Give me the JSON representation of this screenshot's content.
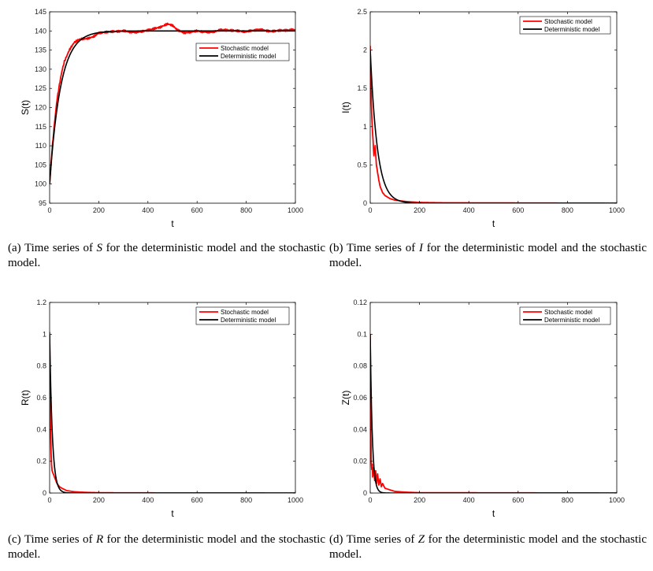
{
  "chart_data": [
    {
      "type": "line",
      "panel": "a",
      "xlabel": "t",
      "ylabel": "S(t)",
      "xlim": [
        0,
        1000
      ],
      "ylim": [
        95,
        145
      ],
      "xticks": [
        "0",
        "200",
        "400",
        "600",
        "800",
        "1000"
      ],
      "yticks": [
        "95",
        "100",
        "105",
        "110",
        "115",
        "120",
        "125",
        "130",
        "135",
        "140",
        "145"
      ],
      "legend_position": "top-right",
      "series": [
        {
          "name": "Stochastic model",
          "color": "#ff0000",
          "kind": "stochastic",
          "x": [
            0,
            10,
            20,
            30,
            40,
            50,
            60,
            80,
            100,
            120,
            150,
            180,
            200,
            250,
            300,
            350,
            400,
            450,
            480,
            500,
            520,
            550,
            600,
            650,
            700,
            750,
            800,
            850,
            900,
            950,
            1000
          ],
          "y": [
            100,
            109,
            116,
            122,
            126,
            129.5,
            132,
            135,
            137,
            137.8,
            138,
            138.5,
            139.5,
            139.8,
            140,
            139.6,
            140.2,
            141,
            141.8,
            141.5,
            140.2,
            139.5,
            140,
            139.6,
            140.3,
            140.1,
            139.8,
            140.4,
            139.9,
            140.2,
            140.3
          ]
        },
        {
          "name": "Deterministic model",
          "color": "#000000",
          "kind": "exp",
          "start": 100,
          "end": 140,
          "rate": 0.0225
        }
      ]
    },
    {
      "type": "line",
      "panel": "b",
      "xlabel": "t",
      "ylabel": "I(t)",
      "xlim": [
        0,
        1000
      ],
      "ylim": [
        0,
        2.5
      ],
      "xticks": [
        "0",
        "200",
        "400",
        "600",
        "800",
        "1000"
      ],
      "yticks": [
        "0",
        "0.5",
        "1",
        "1.5",
        "2",
        "2.5"
      ],
      "legend_position": "top-right",
      "series": [
        {
          "name": "Stochastic model",
          "color": "#ff0000",
          "kind": "stochastic",
          "x": [
            0,
            3,
            6,
            10,
            15,
            20,
            25,
            30,
            35,
            40,
            50,
            60,
            80,
            100,
            150,
            200,
            300,
            1000
          ],
          "y": [
            2.03,
            1.5,
            1.15,
            0.9,
            0.62,
            0.75,
            0.5,
            0.4,
            0.3,
            0.22,
            0.14,
            0.1,
            0.06,
            0.04,
            0.02,
            0.01,
            0.005,
            0
          ]
        },
        {
          "name": "Deterministic model",
          "color": "#000000",
          "kind": "exp",
          "start": 2.0,
          "end": 0,
          "rate": 0.035
        }
      ]
    },
    {
      "type": "line",
      "panel": "c",
      "xlabel": "t",
      "ylabel": "R(t)",
      "xlim": [
        0,
        1000
      ],
      "ylim": [
        0,
        1.2
      ],
      "xticks": [
        "0",
        "200",
        "400",
        "600",
        "800",
        "1000"
      ],
      "yticks": [
        "0",
        "0.2",
        "0.4",
        "0.6",
        "0.8",
        "1",
        "1.2"
      ],
      "legend_position": "top-right",
      "series": [
        {
          "name": "Stochastic model",
          "color": "#ff0000",
          "kind": "stochastic",
          "x": [
            0,
            2,
            4,
            6,
            8,
            10,
            15,
            20,
            25,
            30,
            40,
            50,
            70,
            100,
            150,
            200,
            300,
            1000
          ],
          "y": [
            1.0,
            0.6,
            0.38,
            0.25,
            0.18,
            0.14,
            0.12,
            0.1,
            0.08,
            0.06,
            0.04,
            0.03,
            0.015,
            0.008,
            0.004,
            0.002,
            0.001,
            0
          ]
        },
        {
          "name": "Deterministic model",
          "color": "#000000",
          "kind": "exp",
          "start": 1.0,
          "end": 0,
          "rate": 0.09
        }
      ]
    },
    {
      "type": "line",
      "panel": "d",
      "xlabel": "t",
      "ylabel": "Z(t)",
      "xlim": [
        0,
        1000
      ],
      "ylim": [
        0,
        0.12
      ],
      "xticks": [
        "0",
        "200",
        "400",
        "600",
        "800",
        "1000"
      ],
      "yticks": [
        "0",
        "0.02",
        "0.04",
        "0.06",
        "0.08",
        "0.1",
        "0.12"
      ],
      "legend_position": "top-right",
      "series": [
        {
          "name": "Stochastic model",
          "color": "#ff0000",
          "kind": "stochastic",
          "x": [
            0,
            2,
            4,
            6,
            8,
            10,
            14,
            18,
            22,
            26,
            30,
            35,
            40,
            45,
            50,
            60,
            80,
            100,
            150,
            200,
            1000
          ],
          "y": [
            0.1,
            0.04,
            0.02,
            0.015,
            0.018,
            0.01,
            0.016,
            0.008,
            0.014,
            0.006,
            0.012,
            0.005,
            0.009,
            0.004,
            0.006,
            0.003,
            0.002,
            0.001,
            0.0005,
            0.0002,
            0
          ]
        },
        {
          "name": "Deterministic model",
          "color": "#000000",
          "kind": "exp",
          "start": 0.1,
          "end": 0,
          "rate": 0.12
        }
      ]
    }
  ],
  "captions": {
    "a": {
      "prefix": "(a) Time series of ",
      "symbol": "S",
      "suffix": " for the deterministic model and the stochastic model."
    },
    "b": {
      "prefix": "(b) Time series of ",
      "symbol": "I",
      "suffix": " for the deterministic model and the stochastic model."
    },
    "c": {
      "prefix": "(c) Time series of ",
      "symbol": "R",
      "suffix": " for the deterministic model and the stochastic model."
    },
    "d": {
      "prefix": "(d) Time series of ",
      "symbol": "Z",
      "suffix": " for the deterministic model and the stochastic model."
    }
  }
}
